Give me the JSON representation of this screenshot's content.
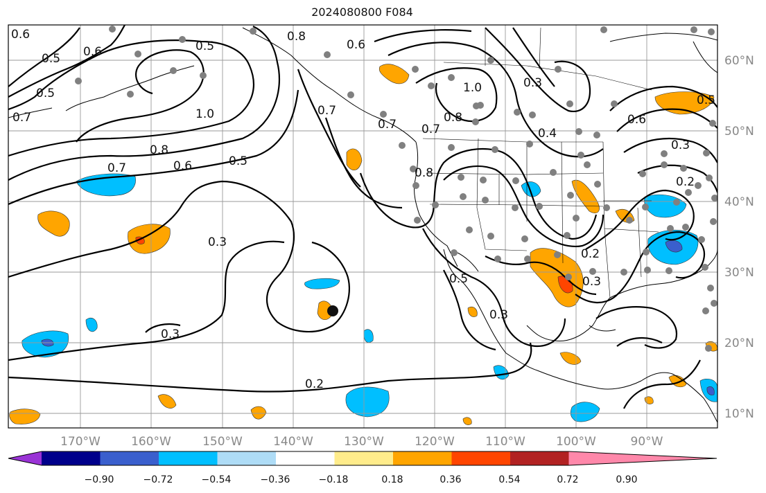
{
  "title": "2024080800 F084",
  "map": {
    "lon_ticks": [
      "170°W",
      "160°W",
      "150°W",
      "140°W",
      "130°W",
      "120°W",
      "110°W",
      "100°W",
      "90°W"
    ],
    "lat_ticks": [
      "60°N",
      "50°N",
      "40°N",
      "30°N",
      "20°N",
      "10°N"
    ],
    "grid": true
  },
  "colorbar": {
    "ticks": [
      "−0.90",
      "−0.72",
      "−0.54",
      "−0.36",
      "−0.18",
      "0.18",
      "0.36",
      "0.54",
      "0.72",
      "0.90"
    ],
    "colors": [
      "#9a33d6",
      "#00008b",
      "#3a5fcd",
      "#00bfff",
      "#aedcf6",
      "#ffffff",
      "#ffec8b",
      "#ffa500",
      "#ff4500",
      "#b22222",
      "#ff88aa"
    ]
  },
  "contour_labels": [
    "0.6",
    "0.5",
    "0.6",
    "0.5",
    "0.5",
    "0.7",
    "1.0",
    "0.8",
    "0.6",
    "0.5",
    "0.7",
    "0.6",
    "0.7",
    "0.8",
    "0.7",
    "1.0",
    "0.8",
    "0.7",
    "0.8",
    "0.3",
    "0.3",
    "0.4",
    "0.5",
    "0.6",
    "0.3",
    "0.2",
    "0.3",
    "0.5",
    "0.2",
    "0.3",
    "0.2",
    "0.3"
  ]
}
